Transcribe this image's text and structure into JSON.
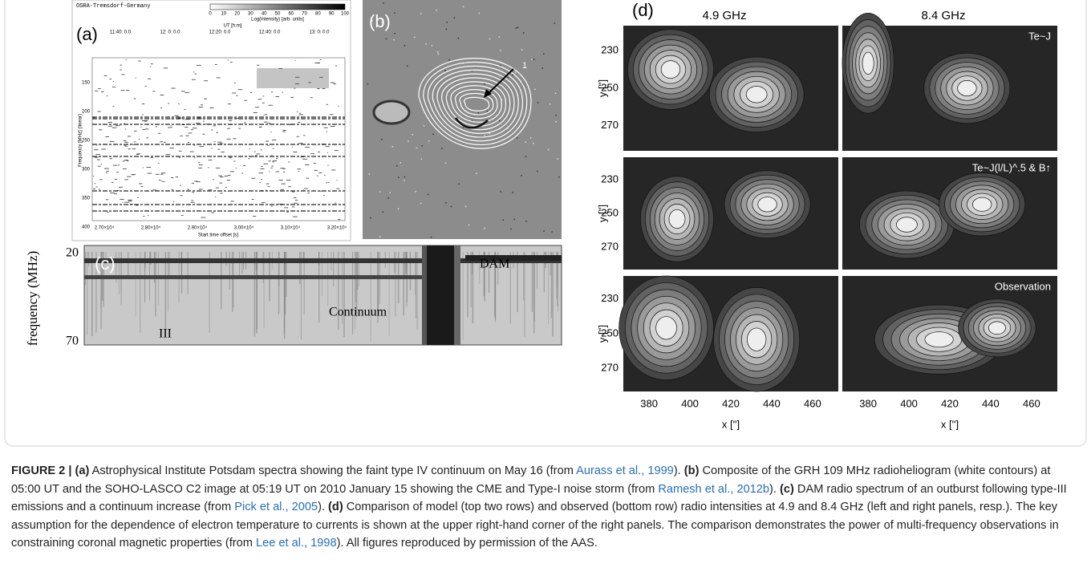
{
  "panel_a": {
    "label": "(a)",
    "station": "OSRA-Tremsdorf-Germany",
    "colorbar_ticks": [
      0,
      10,
      20,
      30,
      40,
      50,
      60,
      70,
      80,
      90,
      100
    ],
    "colorbar_title": "Log(intensity) [arb. units]",
    "time_title": "UT [h:m]",
    "time_ticks": [
      "11:40: 0.0",
      "12: 0: 0.0",
      "12:20: 0.0",
      "12:40: 0.0",
      "13: 0: 0.0"
    ],
    "freq_title": "Frequency [MHz] (linear)",
    "freq_ticks": [
      150,
      200,
      250,
      300,
      350,
      400
    ],
    "offset_ticks": [
      "2.70×10⁴",
      "2.80×10⁴",
      "2.90×10⁴",
      "3.00×10⁴",
      "3.10×10⁴",
      "3.20×10⁴"
    ],
    "offset_title": "Start time offset [s]"
  },
  "panel_b": {
    "label": "(b)",
    "marker": "1"
  },
  "panel_c": {
    "label": "(c)",
    "y_title": "frequency (MHz)",
    "y_ticks": [
      20,
      70
    ],
    "annotations": [
      "DAM",
      "Continuum",
      "III"
    ]
  },
  "panel_d": {
    "label": "(d)",
    "columns": [
      "4.9 GHz",
      "8.4 GHz"
    ],
    "row_labels": [
      "Te~J",
      "Te~J(l/L)^.5 & B↑",
      "Observation"
    ],
    "y_title": "y ['']",
    "y_ticks": [
      230,
      250,
      270
    ],
    "x_title": "x ['']",
    "x_ticks": [
      380,
      400,
      420,
      440,
      460
    ]
  },
  "caption": {
    "segments": [
      "FIGURE 2 | (a)",
      " Astrophysical Institute Potsdam spectra showing the faint type IV continuum on May 16 (from ",
      "Aurass et al., 1999",
      "). ",
      "(b)",
      " Composite of the GRH 109 MHz radioheliogram (white contours) at 05:00 UT and the SOHO-LASCO C2 image at 05:19 UT on 2010 January 15 showing the CME and Type-I noise storm (from ",
      "Ramesh et al., 2012b",
      "). ",
      "(c)",
      " DAM radio spectrum of an outburst following type-III emissions and a continuum increase (from ",
      "Pick et al., 2005",
      "). ",
      "(d)",
      " Comparison of model (top two rows) and observed (bottom row) radio intensities at 4.9 and 8.4 GHz (left and right panels, resp.). The key assumption for the dependence of electron temperature to currents is shown at the upper right-hand corner of the right panels. The comparison demonstrates the power of multi-frequency observations in constraining coronal magnetic properties (from ",
      "Lee et al., 1998",
      "). All figures reproduced by permission of the AAS."
    ]
  }
}
